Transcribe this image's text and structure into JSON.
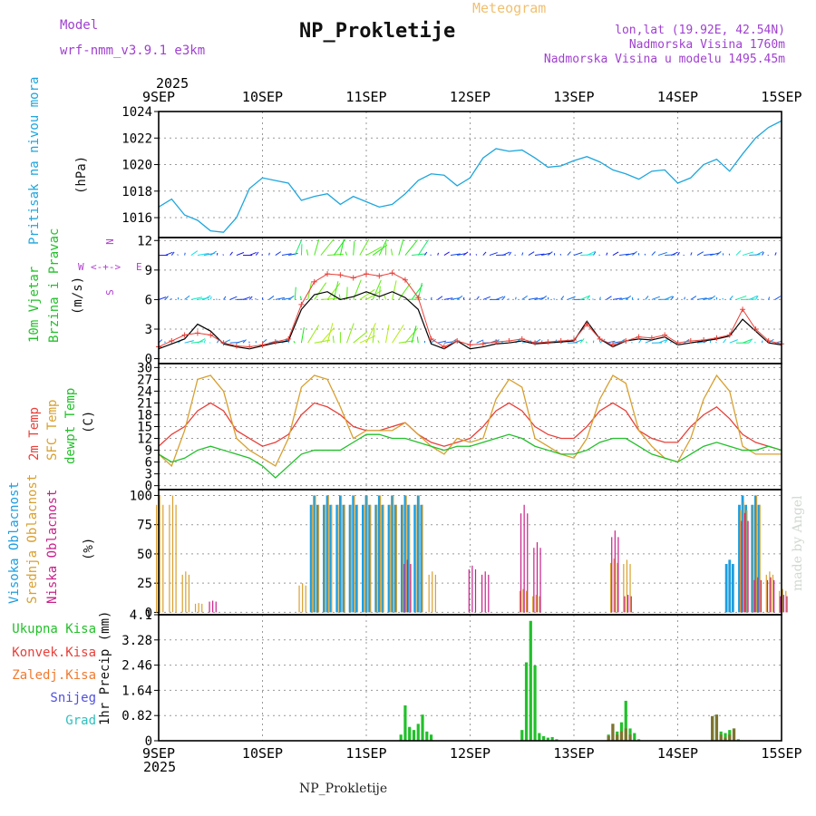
{
  "header": {
    "model_label": "Model",
    "model_value": "wrf-nmm_v3.9.1 e3km",
    "app_title": "Meteogram",
    "station": "NP_Prokletije",
    "coords": "lon,lat (19.92E, 42.54N)",
    "altitude": "Nadmorska Visina 1760m",
    "model_altitude": "Nadmorska Visina u modelu 1495.45m",
    "year_top": "2025",
    "year_bottom": "2025",
    "footer_station": "NP_Prokletije",
    "watermark": "made by Angel"
  },
  "days": [
    "9SEP",
    "10SEP",
    "11SEP",
    "12SEP",
    "13SEP",
    "14SEP",
    "15SEP"
  ],
  "panels": {
    "pressure": {
      "label": "Pritisak na nivou mora",
      "unit": "(hPa)",
      "ticks": [
        "1016",
        "1018",
        "1020",
        "1022",
        "1024"
      ]
    },
    "wind": {
      "label1": "10m Vjetar",
      "label2": "Brzina i Pravac",
      "unit": "(m/s)",
      "compass_n": "N",
      "compass_s": "S",
      "compass_w": "W",
      "compass_e": "E",
      "ticks": [
        "0",
        "3",
        "6",
        "9",
        "12"
      ]
    },
    "temp": {
      "label1": "2m Temp",
      "label2": "SFC Temp",
      "label3": "dewpt Temp",
      "unit": "(C)",
      "ticks": [
        "0",
        "3",
        "6",
        "9",
        "12",
        "15",
        "18",
        "21",
        "24",
        "27",
        "30"
      ]
    },
    "cloud": {
      "label1": "Visoka Oblacnost",
      "label2": "Srednja Oblacnost",
      "label3": "Niska Oblacnost",
      "unit": "(%)",
      "ticks": [
        "0",
        "25",
        "50",
        "75",
        "100"
      ]
    },
    "precip": {
      "unit": "1hr Precip (mm)",
      "ticks": [
        "0",
        "0.82",
        "1.64",
        "2.46",
        "3.28",
        "4.1"
      ],
      "legend": [
        "Ukupna Kisa",
        "Konvek.Kisa",
        "Zaledj.Kisa",
        "Snijeg",
        "Grad"
      ]
    }
  },
  "colors": {
    "pressure": "#1ea6dd",
    "wind_label": "#22c02a",
    "compass": "#b040d0",
    "t2m": "#e8403a",
    "sfc": "#d8a030",
    "dewpt": "#22c02a",
    "cloud_high": "#1e9ee0",
    "cloud_mid": "#d8a030",
    "cloud_low": "#c8208a",
    "rain": "#22c02a",
    "conv": "#e8403a",
    "frz": "#f07a30",
    "snow": "#5050e0",
    "hail": "#30c0c0",
    "title_orange": "#f0c070",
    "header_purple": "#a040d0"
  },
  "chart_data": [
    {
      "type": "line",
      "title": "Pritisak na nivou mora",
      "ylabel": "hPa",
      "ylim": [
        1014.5,
        1024
      ],
      "x_hours": [
        0,
        3,
        6,
        9,
        12,
        15,
        18,
        21,
        24,
        27,
        30,
        33,
        36,
        39,
        42,
        45,
        48,
        51,
        54,
        57,
        60,
        63,
        66,
        69,
        72,
        75,
        78,
        81,
        84,
        87,
        90,
        93,
        96,
        99,
        102,
        105,
        108,
        111,
        114,
        117,
        120,
        123,
        126,
        129,
        132,
        135,
        138,
        141,
        144
      ],
      "values": [
        1016.8,
        1017.4,
        1016.2,
        1015.8,
        1015.0,
        1014.9,
        1016.0,
        1018.2,
        1019.0,
        1018.8,
        1018.6,
        1017.3,
        1017.6,
        1017.8,
        1017.0,
        1017.6,
        1017.2,
        1016.8,
        1017.0,
        1017.8,
        1018.8,
        1019.3,
        1019.2,
        1018.4,
        1019.0,
        1020.5,
        1021.2,
        1021.0,
        1021.1,
        1020.5,
        1019.8,
        1019.9,
        1020.3,
        1020.6,
        1020.2,
        1019.6,
        1019.3,
        1018.9,
        1019.5,
        1019.6,
        1018.6,
        1019.0,
        1020.0,
        1020.4,
        1019.5,
        1020.8,
        1022.0,
        1022.8,
        1023.3
      ]
    },
    {
      "type": "line",
      "title": "10m Vjetar Brzina i Pravac",
      "ylabel": "m/s",
      "ylim": [
        0,
        12
      ],
      "x_hours": [
        0,
        3,
        6,
        9,
        12,
        15,
        18,
        21,
        24,
        27,
        30,
        33,
        36,
        39,
        42,
        45,
        48,
        51,
        54,
        57,
        60,
        63,
        66,
        69,
        72,
        75,
        78,
        81,
        84,
        87,
        90,
        93,
        96,
        99,
        102,
        105,
        108,
        111,
        114,
        117,
        120,
        123,
        126,
        129,
        132,
        135,
        138,
        141,
        144
      ],
      "series": [
        {
          "name": "Brzina",
          "values": [
            1.0,
            1.5,
            2.0,
            3.5,
            2.8,
            1.5,
            1.2,
            1.0,
            1.3,
            1.6,
            1.8,
            5.0,
            6.5,
            6.8,
            6.0,
            6.3,
            6.8,
            6.3,
            6.8,
            6.2,
            5.0,
            1.5,
            1.0,
            1.8,
            1.0,
            1.2,
            1.5,
            1.6,
            1.8,
            1.5,
            1.6,
            1.7,
            1.8,
            3.8,
            2.0,
            1.2,
            1.8,
            2.0,
            1.9,
            2.2,
            1.4,
            1.6,
            1.8,
            2.0,
            2.3,
            4.0,
            2.8,
            1.6,
            1.4
          ]
        },
        {
          "name": "Udari",
          "values": [
            1.2,
            1.8,
            2.4,
            2.6,
            2.4,
            1.6,
            1.3,
            1.2,
            1.4,
            1.7,
            2.0,
            5.5,
            7.8,
            8.6,
            8.5,
            8.2,
            8.6,
            8.4,
            8.7,
            8.0,
            6.2,
            2.0,
            1.2,
            1.8,
            1.4,
            1.5,
            1.7,
            1.8,
            2.0,
            1.6,
            1.7,
            1.8,
            1.9,
            3.5,
            2.0,
            1.4,
            1.8,
            2.2,
            2.1,
            2.4,
            1.6,
            1.8,
            1.9,
            2.1,
            2.4,
            5.0,
            3.0,
            1.8,
            1.5
          ]
        }
      ]
    },
    {
      "type": "line",
      "title": "Temperatura",
      "ylabel": "C",
      "ylim": [
        0,
        30
      ],
      "x_hours": [
        0,
        3,
        6,
        9,
        12,
        15,
        18,
        21,
        24,
        27,
        30,
        33,
        36,
        39,
        42,
        45,
        48,
        51,
        54,
        57,
        60,
        63,
        66,
        69,
        72,
        75,
        78,
        81,
        84,
        87,
        90,
        93,
        96,
        99,
        102,
        105,
        108,
        111,
        114,
        117,
        120,
        123,
        126,
        129,
        132,
        135,
        138,
        141,
        144
      ],
      "series": [
        {
          "name": "2m Temp",
          "values": [
            10,
            13,
            15,
            19,
            21,
            19,
            14,
            12,
            10,
            11,
            13,
            18,
            21,
            20,
            18,
            15,
            14,
            14,
            15,
            16,
            13,
            11,
            10,
            11,
            12,
            15,
            19,
            21,
            19,
            15,
            13,
            12,
            12,
            15,
            19,
            21,
            19,
            14,
            12,
            11,
            11,
            15,
            18,
            20,
            17,
            13,
            11,
            10,
            9
          ]
        },
        {
          "name": "SFC Temp",
          "values": [
            8,
            5,
            14,
            27,
            28,
            24,
            12,
            9,
            7,
            5,
            12,
            25,
            28,
            27,
            20,
            12,
            14,
            14,
            14,
            16,
            13,
            10,
            8,
            12,
            11,
            12,
            22,
            27,
            25,
            12,
            10,
            8,
            7,
            12,
            22,
            28,
            26,
            14,
            10,
            7,
            6,
            12,
            22,
            28,
            24,
            10,
            8,
            8,
            8
          ]
        },
        {
          "name": "dewpt Temp",
          "values": [
            8,
            6,
            7,
            9,
            10,
            9,
            8,
            7,
            5,
            2,
            5,
            8,
            9,
            9,
            9,
            11,
            13,
            13,
            12,
            12,
            11,
            10,
            9,
            10,
            10,
            11,
            12,
            13,
            12,
            10,
            9,
            8,
            8,
            9,
            11,
            12,
            12,
            10,
            8,
            7,
            6,
            8,
            10,
            11,
            10,
            9,
            9,
            10,
            9
          ]
        }
      ]
    },
    {
      "type": "bar",
      "title": "Oblacnost",
      "ylabel": "%",
      "ylim": [
        0,
        100
      ],
      "x_hours": [
        0,
        3,
        6,
        9,
        12,
        15,
        18,
        21,
        24,
        27,
        30,
        33,
        36,
        39,
        42,
        45,
        48,
        51,
        54,
        57,
        60,
        63,
        66,
        69,
        72,
        75,
        78,
        81,
        84,
        87,
        90,
        93,
        96,
        99,
        102,
        105,
        108,
        111,
        114,
        117,
        120,
        123,
        126,
        129,
        132,
        135,
        138,
        141,
        144
      ],
      "series": [
        {
          "name": "Visoka Oblacnost",
          "values": [
            0,
            0,
            0,
            0,
            0,
            0,
            0,
            0,
            0,
            0,
            0,
            0,
            100,
            100,
            100,
            100,
            100,
            100,
            100,
            100,
            100,
            0,
            0,
            0,
            0,
            0,
            0,
            0,
            0,
            0,
            0,
            0,
            0,
            0,
            0,
            0,
            0,
            0,
            0,
            0,
            0,
            0,
            0,
            0,
            45,
            100,
            100,
            0,
            0
          ]
        },
        {
          "name": "Srednja Oblacnost",
          "values": [
            100,
            100,
            35,
            8,
            0,
            0,
            0,
            0,
            0,
            0,
            0,
            25,
            100,
            100,
            100,
            100,
            100,
            100,
            100,
            100,
            100,
            35,
            0,
            0,
            0,
            0,
            0,
            0,
            20,
            15,
            0,
            0,
            0,
            0,
            0,
            46,
            45,
            0,
            0,
            0,
            0,
            0,
            0,
            0,
            0,
            95,
            100,
            35,
            20
          ]
        },
        {
          "name": "Niska Oblacnost",
          "values": [
            0,
            0,
            0,
            0,
            10,
            0,
            0,
            0,
            0,
            0,
            0,
            0,
            0,
            0,
            0,
            0,
            0,
            0,
            0,
            45,
            0,
            0,
            0,
            0,
            40,
            35,
            0,
            0,
            92,
            60,
            0,
            0,
            0,
            0,
            0,
            70,
            15,
            0,
            0,
            0,
            0,
            0,
            0,
            0,
            0,
            85,
            30,
            30,
            15
          ]
        }
      ]
    },
    {
      "type": "bar",
      "title": "1hr Precip",
      "ylabel": "mm",
      "ylim": [
        0,
        4.1
      ],
      "x_hours": [
        56,
        57,
        58,
        59,
        60,
        61,
        62,
        63,
        84,
        85,
        86,
        87,
        88,
        89,
        90,
        91,
        92,
        104,
        105,
        106,
        107,
        108,
        109,
        110,
        111,
        128,
        129,
        130,
        131,
        132,
        133,
        134
      ],
      "series": [
        {
          "name": "Ukupna Kisa",
          "values": [
            0.2,
            1.15,
            0.45,
            0.35,
            0.55,
            0.85,
            0.3,
            0.2,
            0.35,
            2.55,
            3.9,
            2.45,
            0.25,
            0.15,
            0.1,
            0.12,
            0.05,
            0.2,
            0.55,
            0.3,
            0.6,
            1.3,
            0.4,
            0.25,
            0.05,
            0.8,
            0.85,
            0.3,
            0.25,
            0.35,
            0.4,
            0.05
          ]
        },
        {
          "name": "Konvek.Kisa",
          "values": [
            0,
            0,
            0,
            0,
            0,
            0,
            0,
            0,
            0,
            0,
            0,
            0,
            0,
            0,
            0,
            0,
            0,
            0.15,
            0.55,
            0.2,
            0.3,
            0.4,
            0.2,
            0,
            0,
            0.8,
            0.85,
            0.2,
            0.1,
            0.2,
            0.4,
            0
          ]
        }
      ]
    }
  ]
}
